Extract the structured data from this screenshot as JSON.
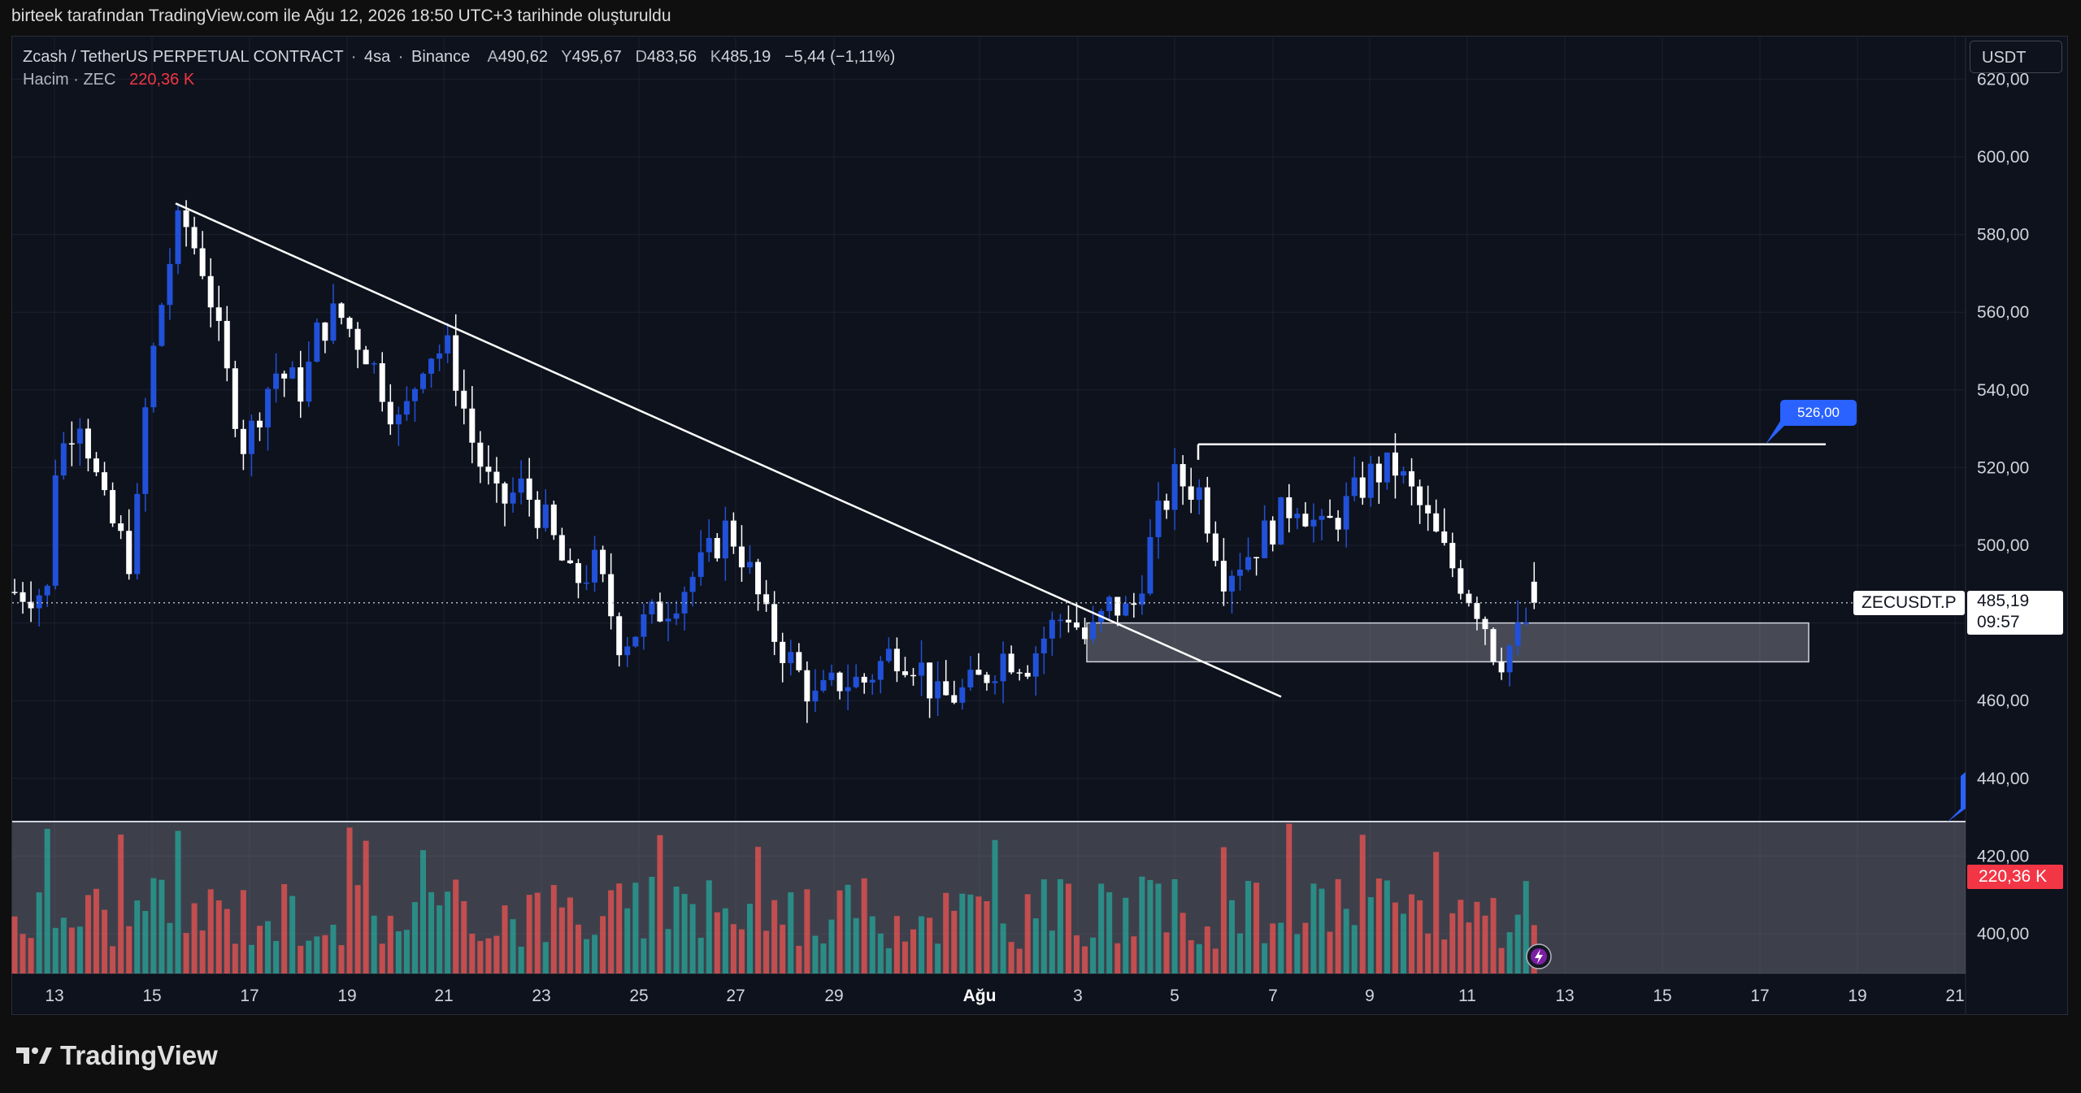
{
  "header": {
    "attribution": "birteek tarafından TradingView.com ile Ağu 12, 2026 18:50 UTC+3 tarihinde oluşturuldu"
  },
  "legend": {
    "symbol": "Zcash / TetherUS PERPETUAL CONTRACT",
    "interval": "4sa",
    "exchange": "Binance",
    "open_label": "A",
    "open": "490,62",
    "high_label": "Y",
    "high": "495,67",
    "low_label": "D",
    "low": "483,56",
    "close_label": "K",
    "close": "485,19",
    "change": "−5,44 (−1,11%)",
    "volume_label": "Hacim · ZEC",
    "volume_value": "220,36 K"
  },
  "currency_button": "USDT",
  "ticker_label": "ZECUSDT.P",
  "price_tag": {
    "price": "485,19",
    "countdown": "09:57"
  },
  "volume_tag": "220,36 K",
  "level_tag": "526,00",
  "brand": "TradingView",
  "colors": {
    "up": "#2151d9",
    "down": "#ffffff",
    "vol_up": "#26a69a",
    "vol_down": "#ef5350",
    "level": "#2962ff"
  },
  "chart_data": {
    "type": "candlestick",
    "ylim": [
      386,
      626
    ],
    "y_ticks": [
      "620,00",
      "600,00",
      "580,00",
      "560,00",
      "540,00",
      "520,00",
      "500,00",
      "480,00",
      "460,00",
      "440,00",
      "420,00",
      "400,00"
    ],
    "x_ticks": [
      "13",
      "15",
      "17",
      "19",
      "21",
      "23",
      "25",
      "27",
      "29",
      "Ağu",
      "3",
      "5",
      "7",
      "9",
      "11",
      "13",
      "15",
      "17",
      "19",
      "21"
    ],
    "key_points": [
      [
        "13",
        520
      ],
      [
        "13.5",
        535
      ],
      [
        "14",
        510
      ],
      [
        "14.6",
        495
      ],
      [
        "14.9",
        540
      ],
      [
        "15.3",
        570
      ],
      [
        "15.6",
        585
      ],
      [
        "16.1",
        570
      ],
      [
        "16.5",
        545
      ],
      [
        "16.9",
        525
      ],
      [
        "17.5",
        545
      ],
      [
        "18.1",
        540
      ],
      [
        "18.4",
        555
      ],
      [
        "18.8",
        560
      ],
      [
        "19.4",
        550
      ],
      [
        "20.1",
        530
      ],
      [
        "20.6",
        550
      ],
      [
        "21.1",
        550
      ],
      [
        "21.6",
        525
      ],
      [
        "22.1",
        510
      ],
      [
        "22.6",
        515
      ],
      [
        "23.1",
        505
      ],
      [
        "23.6",
        490
      ],
      [
        "24.1",
        495
      ],
      [
        "24.6",
        475
      ],
      [
        "25.1",
        480
      ],
      [
        "25.6",
        485
      ],
      [
        "26.3",
        495
      ],
      [
        "26.8",
        505
      ],
      [
        "27.2",
        495
      ],
      [
        "27.6",
        480
      ],
      [
        "28.1",
        470
      ],
      [
        "28.6",
        460
      ],
      [
        "29.1",
        465
      ],
      [
        "29.6",
        465
      ],
      [
        "30.2",
        473
      ],
      [
        "30.7",
        470
      ],
      [
        "31.1",
        460
      ],
      [
        "31.6",
        462
      ],
      [
        "1",
        465
      ],
      [
        "1.5",
        472
      ],
      [
        "2",
        470
      ],
      [
        "2.4",
        478
      ],
      [
        "2.8",
        483
      ],
      [
        "3.2",
        475
      ],
      [
        "3.7",
        485
      ],
      [
        "4.1",
        482
      ],
      [
        "4.6",
        505
      ],
      [
        "5.0",
        517
      ],
      [
        "5.5",
        514
      ],
      [
        "6.0",
        493
      ],
      [
        "6.5",
        498
      ],
      [
        "7.0",
        505
      ],
      [
        "7.5",
        512
      ],
      [
        "8.0",
        503
      ],
      [
        "8.5",
        510
      ],
      [
        "9.0",
        518
      ],
      [
        "9.5",
        520
      ],
      [
        "10.0",
        510
      ],
      [
        "10.5",
        498
      ],
      [
        "11.0",
        488
      ],
      [
        "11.3",
        482
      ],
      [
        "11.6",
        470
      ],
      [
        "12.1",
        478
      ],
      [
        "12.5",
        488
      ]
    ],
    "ohlc_last": {
      "open": 490.62,
      "high": 495.67,
      "low": 483.56,
      "close": 485.19
    },
    "annotations": {
      "trendline": {
        "from": [
          "15.5",
          588
        ],
        "to": [
          "7.2",
          462
        ]
      },
      "resistance": {
        "from": [
          "5.5",
          526
        ],
        "to": [
          "18.3",
          526
        ],
        "label": "526,00"
      },
      "support_zone": {
        "from": [
          "3.2",
          470
        ],
        "to": [
          "17.9",
          480
        ]
      },
      "current_price_line": 485.19
    }
  }
}
